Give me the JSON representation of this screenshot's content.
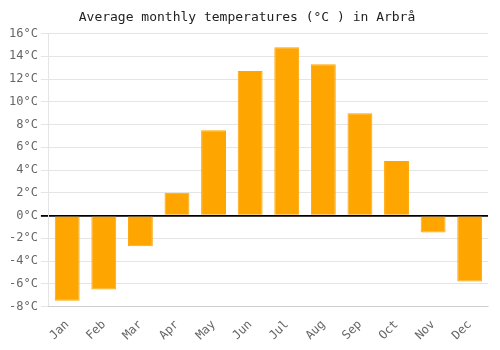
{
  "chart_data": {
    "type": "bar",
    "title": "Average monthly temperatures (°C ) in Arbrå",
    "categories": [
      "Jan",
      "Feb",
      "Mar",
      "Apr",
      "May",
      "Jun",
      "Jul",
      "Aug",
      "Sep",
      "Oct",
      "Nov",
      "Dec"
    ],
    "values": [
      -7.5,
      -6.5,
      -2.7,
      2.0,
      7.5,
      12.7,
      14.8,
      13.3,
      9.0,
      4.8,
      -1.5,
      -5.8
    ],
    "color": "#FFA500",
    "ylim": [
      -8,
      16
    ],
    "yticks": [
      {
        "value": -8,
        "label": "-8°C"
      },
      {
        "value": -6,
        "label": "-6°C"
      },
      {
        "value": -4,
        "label": "-4°C"
      },
      {
        "value": -2,
        "label": "-2°C"
      },
      {
        "value": 0,
        "label": "0°C"
      },
      {
        "value": 2,
        "label": "2°C"
      },
      {
        "value": 4,
        "label": "4°C"
      },
      {
        "value": 6,
        "label": "6°C"
      },
      {
        "value": 8,
        "label": "8°C"
      },
      {
        "value": 10,
        "label": "10°C"
      },
      {
        "value": 12,
        "label": "12°C"
      },
      {
        "value": 14,
        "label": "14°C"
      },
      {
        "value": 16,
        "label": "16°C"
      }
    ],
    "grid": true
  }
}
